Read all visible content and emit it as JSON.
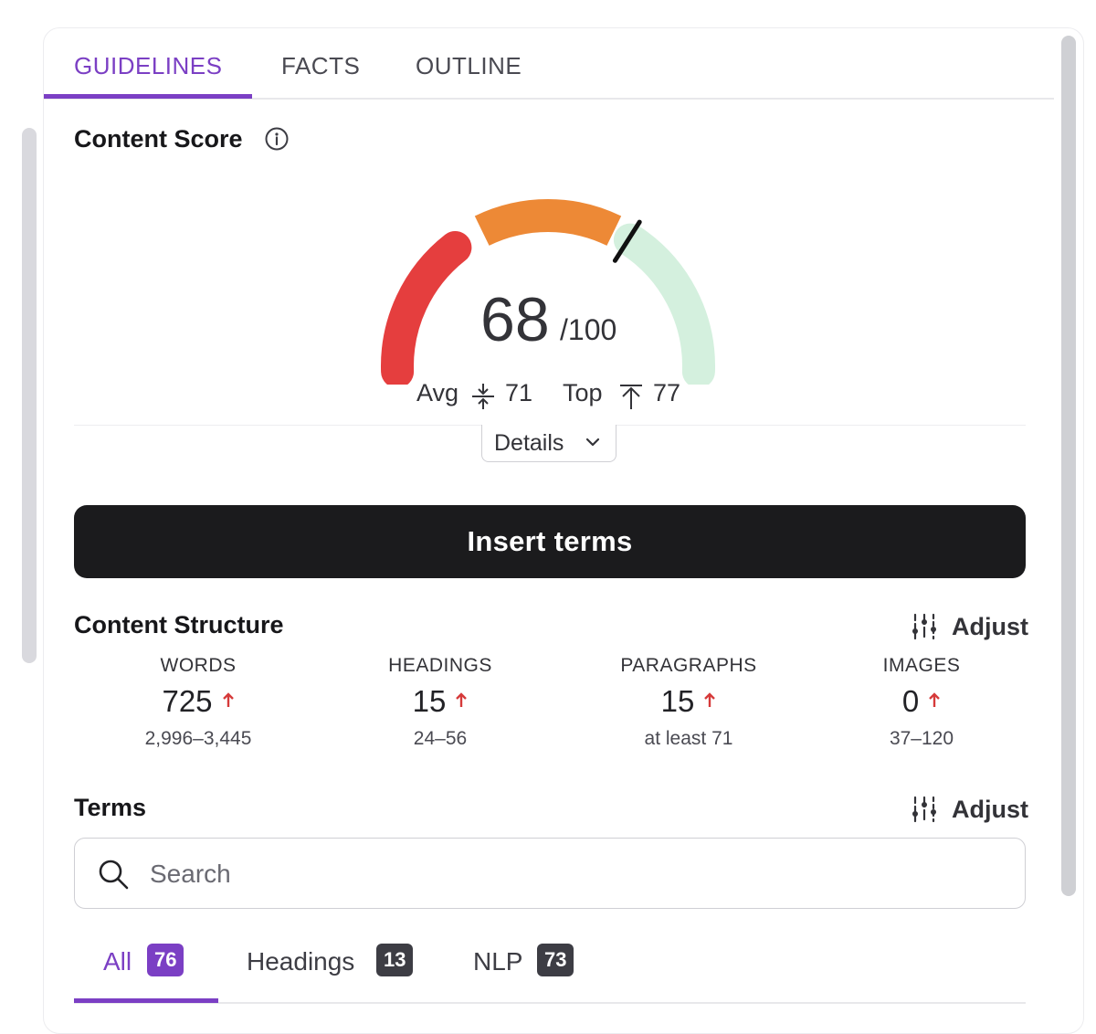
{
  "tabs": [
    {
      "label": "GUIDELINES",
      "active": true
    },
    {
      "label": "FACTS",
      "active": false
    },
    {
      "label": "OUTLINE",
      "active": false
    }
  ],
  "content_score": {
    "title": "Content Score",
    "score": "68",
    "max": "/100",
    "gauge_value": 68,
    "gauge_segments": [
      {
        "name": "low",
        "color": "#e53e3e"
      },
      {
        "name": "mid",
        "color": "#ed8936"
      },
      {
        "name": "high",
        "color": "#d4f0de"
      }
    ],
    "avg_label": "Avg",
    "avg_value": "71",
    "top_label": "Top",
    "top_value": "77",
    "details_label": "Details"
  },
  "insert_button": {
    "label": "Insert terms"
  },
  "content_structure": {
    "title": "Content Structure",
    "adjust_label": "Adjust",
    "metrics": [
      {
        "label": "WORDS",
        "value": "725",
        "range": "2,996–3,445"
      },
      {
        "label": "HEADINGS",
        "value": "15",
        "range": "24–56"
      },
      {
        "label": "PARAGRAPHS",
        "value": "15",
        "range": "at least 71"
      },
      {
        "label": "IMAGES",
        "value": "0",
        "range": "37–120"
      }
    ]
  },
  "terms": {
    "title": "Terms",
    "adjust_label": "Adjust",
    "search_placeholder": "Search",
    "subtabs": [
      {
        "label": "All",
        "count": "76",
        "active": true
      },
      {
        "label": "Headings",
        "count": "13",
        "active": false
      },
      {
        "label": "NLP",
        "count": "73",
        "active": false
      }
    ]
  },
  "colors": {
    "accent": "#7b3fc4",
    "up_arrow": "#d63a3a"
  }
}
